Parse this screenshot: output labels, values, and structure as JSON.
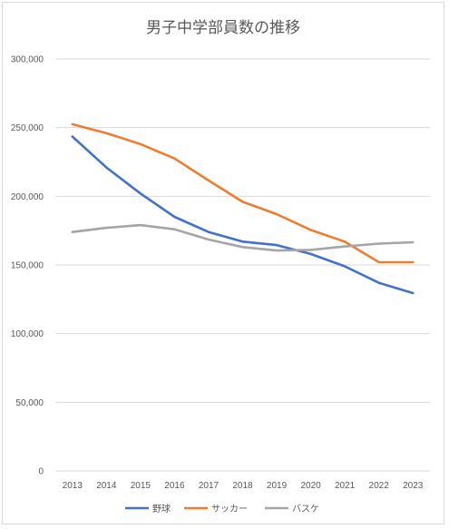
{
  "chart_data": {
    "type": "line",
    "title": "男子中学部員数の推移",
    "xlabel": "",
    "ylabel": "",
    "categories": [
      "2013",
      "2014",
      "2015",
      "2016",
      "2017",
      "2018",
      "2019",
      "2020",
      "2021",
      "2022",
      "2023"
    ],
    "ylim": [
      0,
      300000
    ],
    "yticks": [
      0,
      50000,
      100000,
      150000,
      200000,
      250000,
      300000
    ],
    "ytick_labels": [
      "0",
      "50,000",
      "100,000",
      "150,000",
      "200,000",
      "250,000",
      "300,000"
    ],
    "grid": true,
    "legend_position": "bottom",
    "series": [
      {
        "name": "野球",
        "color": "#4472c4",
        "values": [
          243500,
          221000,
          202000,
          185000,
          174000,
          167000,
          164500,
          158000,
          149000,
          137000,
          129500
        ]
      },
      {
        "name": "サッカー",
        "color": "#ed7d31",
        "values": [
          252500,
          246000,
          238000,
          227500,
          211500,
          196000,
          187000,
          175500,
          167000,
          152000,
          152000
        ]
      },
      {
        "name": "バスケ",
        "color": "#a5a5a5",
        "values": [
          174000,
          177000,
          179000,
          176000,
          168500,
          163000,
          160500,
          161000,
          163500,
          165500,
          166500
        ]
      }
    ]
  }
}
